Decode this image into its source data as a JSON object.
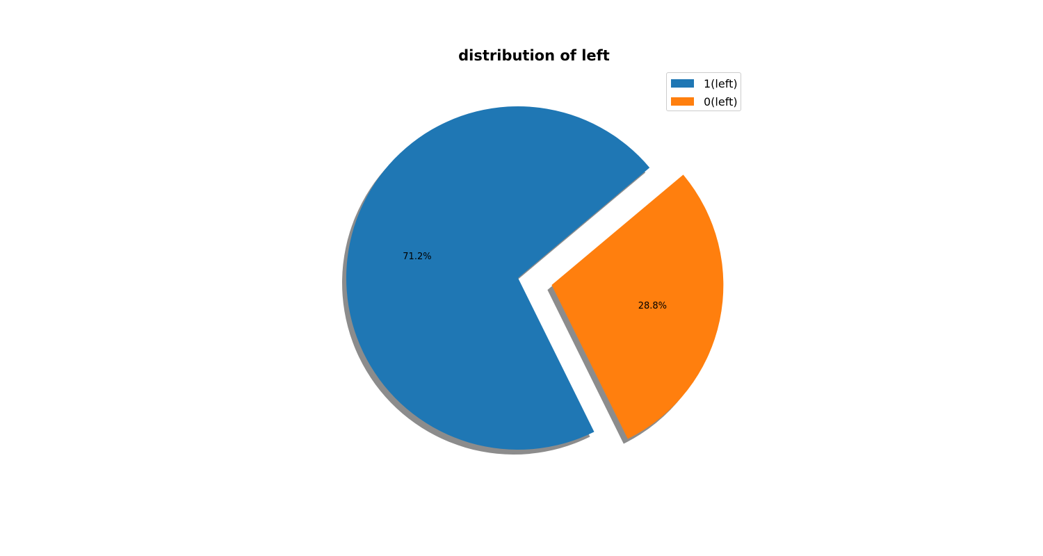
{
  "chart_data": {
    "type": "pie",
    "title": "distribution of left",
    "labels": [
      "1(left)",
      "0(left)"
    ],
    "values": [
      71.2,
      28.8
    ],
    "autopct_labels": [
      "71.2%",
      "28.8%"
    ],
    "colors": [
      "#1f77b4",
      "#ff7f0e"
    ],
    "explode": [
      0,
      0.2
    ],
    "shadow": true,
    "legend_position": "upper-right"
  }
}
